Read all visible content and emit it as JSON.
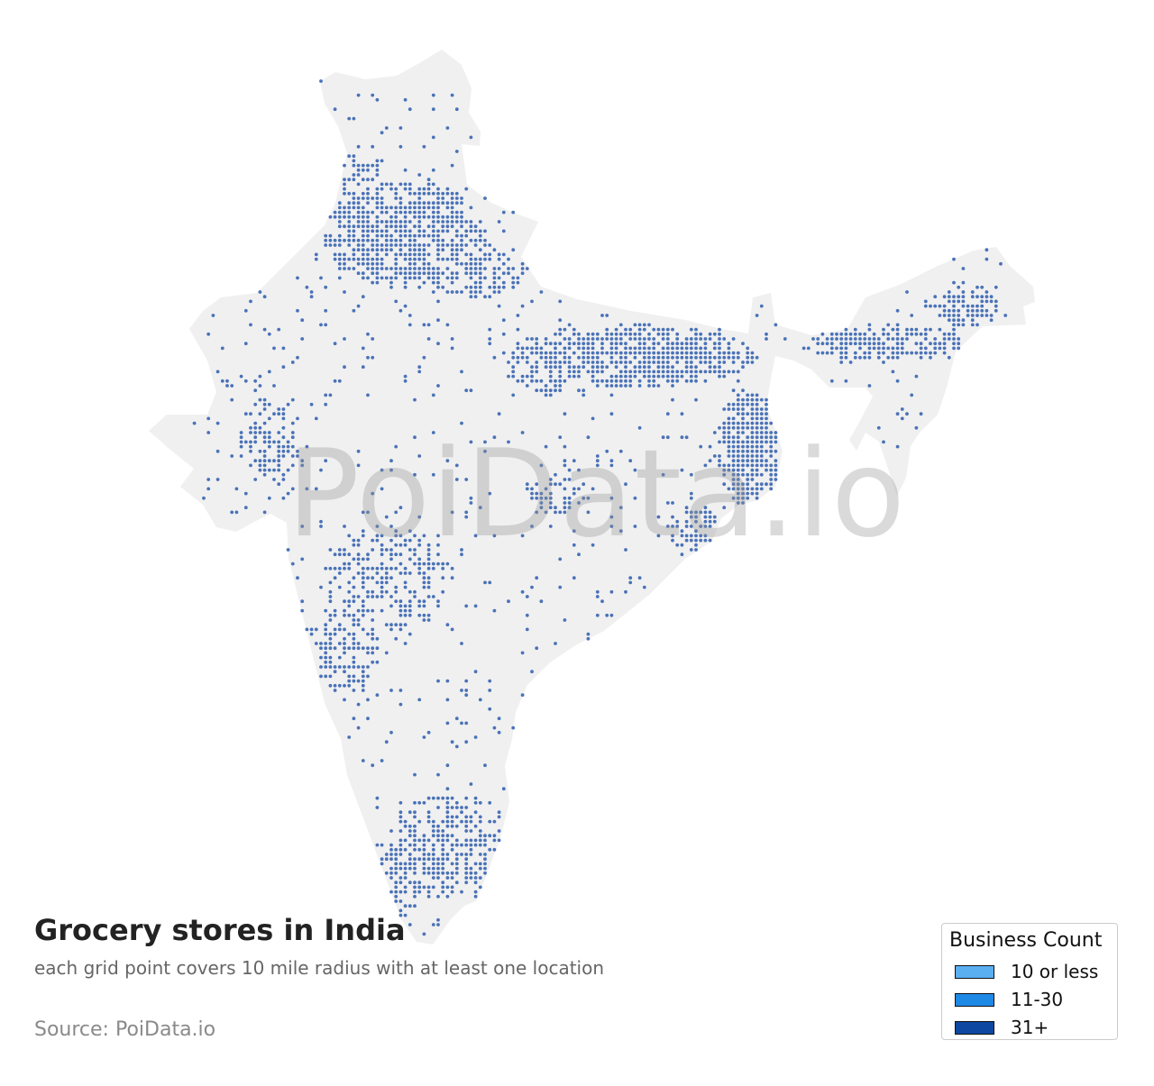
{
  "title": "Grocery stores in India",
  "subtitle": "each grid point covers 10 mile radius with at least one location",
  "source": "Source: PoiData.io",
  "watermark": "PoiData.io",
  "map": {
    "region": "India",
    "land_color": "#f0f0f0",
    "dot_color": "#4a72b8",
    "grid_radius_miles": 10
  },
  "legend": {
    "title": "Business Count",
    "items": [
      {
        "label": "10 or less",
        "color": "#5aaff0"
      },
      {
        "label": "11-30",
        "color": "#1e88e5"
      },
      {
        "label": "31+",
        "color": "#0d47a1"
      }
    ]
  }
}
